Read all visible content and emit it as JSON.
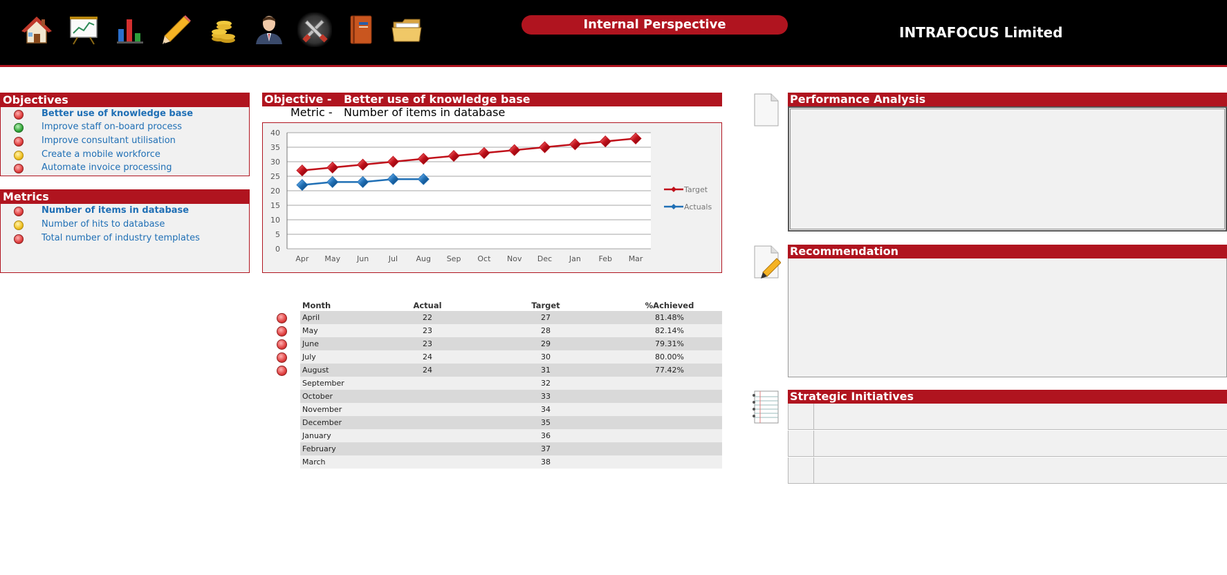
{
  "header": {
    "perspective": "Internal Perspective",
    "company": "INTRAFOCUS Limited",
    "nav_icons": [
      "home-icon",
      "presentation-chart-icon",
      "bar-chart-icon",
      "pencil-icon",
      "coins-icon",
      "person-icon",
      "tools-icon",
      "book-icon",
      "folder-icon"
    ],
    "active_nav": "tools-icon"
  },
  "objectives": {
    "title": "Objectives",
    "items": [
      {
        "label": "Better use of knowledge base",
        "status": "red",
        "selected": true
      },
      {
        "label": "Improve staff on-board process",
        "status": "green",
        "selected": false
      },
      {
        "label": "Improve consultant utilisation",
        "status": "red",
        "selected": false
      },
      {
        "label": "Create a mobile workforce",
        "status": "yellow",
        "selected": false
      },
      {
        "label": "Automate invoice processing",
        "status": "red",
        "selected": false
      }
    ]
  },
  "metrics": {
    "title": "Metrics",
    "items": [
      {
        "label": "Number of items in database",
        "status": "red",
        "selected": true
      },
      {
        "label": "Number of hits to database",
        "status": "yellow",
        "selected": false
      },
      {
        "label": "Total number of industry templates",
        "status": "red",
        "selected": false
      }
    ]
  },
  "objective_header": {
    "objective_prefix": "Objective -",
    "objective_value": "Better use of knowledge base",
    "metric_prefix": "Metric -",
    "metric_value": "Number of items in database"
  },
  "chart_data": {
    "type": "line",
    "categories": [
      "Apr",
      "May",
      "Jun",
      "Jul",
      "Aug",
      "Sep",
      "Oct",
      "Nov",
      "Dec",
      "Jan",
      "Feb",
      "Mar"
    ],
    "series": [
      {
        "name": "Target",
        "color": "#c0101a",
        "values": [
          27,
          28,
          29,
          30,
          31,
          32,
          33,
          34,
          35,
          36,
          37,
          38
        ]
      },
      {
        "name": "Actuals",
        "color": "#1f6fb5",
        "values": [
          22,
          23,
          23,
          24,
          24,
          null,
          null,
          null,
          null,
          null,
          null,
          null
        ]
      }
    ],
    "ylim": [
      0,
      40
    ],
    "yticks": [
      0,
      5,
      10,
      15,
      20,
      25,
      30,
      35,
      40
    ],
    "grid": true,
    "legend_position": "right"
  },
  "table": {
    "headers": {
      "month": "Month",
      "actual": "Actual",
      "target": "Target",
      "achieved": "%Achieved"
    },
    "rows": [
      {
        "month": "April",
        "actual": "22",
        "target": "27",
        "achieved": "81.48%",
        "status": "red"
      },
      {
        "month": "May",
        "actual": "23",
        "target": "28",
        "achieved": "82.14%",
        "status": "red"
      },
      {
        "month": "June",
        "actual": "23",
        "target": "29",
        "achieved": "79.31%",
        "status": "red"
      },
      {
        "month": "July",
        "actual": "24",
        "target": "30",
        "achieved": "80.00%",
        "status": "red"
      },
      {
        "month": "August",
        "actual": "24",
        "target": "31",
        "achieved": "77.42%",
        "status": "red"
      },
      {
        "month": "September",
        "actual": "",
        "target": "32",
        "achieved": "",
        "status": ""
      },
      {
        "month": "October",
        "actual": "",
        "target": "33",
        "achieved": "",
        "status": ""
      },
      {
        "month": "November",
        "actual": "",
        "target": "34",
        "achieved": "",
        "status": ""
      },
      {
        "month": "December",
        "actual": "",
        "target": "35",
        "achieved": "",
        "status": ""
      },
      {
        "month": "January",
        "actual": "",
        "target": "36",
        "achieved": "",
        "status": ""
      },
      {
        "month": "February",
        "actual": "",
        "target": "37",
        "achieved": "",
        "status": ""
      },
      {
        "month": "March",
        "actual": "",
        "target": "38",
        "achieved": "",
        "status": ""
      }
    ]
  },
  "right_panel": {
    "performance_title": "Performance Analysis",
    "recommendation_title": "Recommendation",
    "initiatives_title": "Strategic Initiatives"
  }
}
